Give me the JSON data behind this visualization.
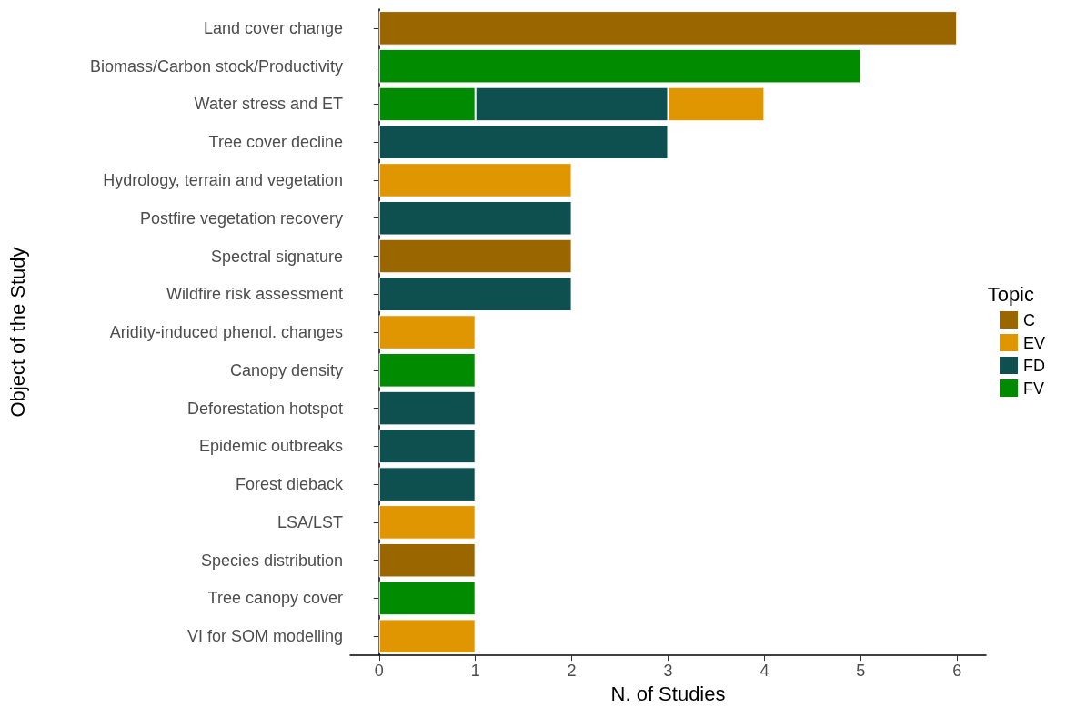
{
  "chart_data": {
    "type": "bar",
    "orientation": "horizontal",
    "stacked": true,
    "xlabel": "N. of Studies",
    "ylabel": "Object of the Study",
    "legend_title": "Topic",
    "categories": [
      "Land cover change",
      "Biomass/Carbon stock/Productivity",
      "Water stress and ET",
      "Tree cover decline",
      "Hydrology, terrain and vegetation",
      "Postfire vegetation recovery",
      "Spectral signature",
      "Wildfire risk assessment",
      "Aridity-induced phenol. changes",
      "Canopy density",
      "Deforestation hotspot",
      "Epidemic outbreaks",
      "Forest dieback",
      "LSA/LST",
      "Species distribution",
      "Tree canopy cover",
      "VI for SOM modelling"
    ],
    "series": [
      {
        "name": "FV",
        "color": "#008b00",
        "values": [
          null,
          5,
          1,
          null,
          null,
          null,
          null,
          null,
          null,
          1,
          null,
          null,
          null,
          null,
          null,
          1,
          null
        ]
      },
      {
        "name": "FD",
        "color": "#0e4f50",
        "values": [
          null,
          null,
          2,
          3,
          null,
          2,
          null,
          2,
          null,
          null,
          1,
          1,
          1,
          null,
          null,
          null,
          null
        ]
      },
      {
        "name": "EV",
        "color": "#e09600",
        "values": [
          null,
          null,
          1,
          null,
          2,
          null,
          null,
          null,
          1,
          null,
          null,
          null,
          null,
          1,
          null,
          null,
          1
        ]
      },
      {
        "name": "C",
        "color": "#996600",
        "values": [
          6,
          null,
          null,
          null,
          null,
          null,
          2,
          null,
          null,
          null,
          null,
          null,
          null,
          null,
          1,
          null,
          null
        ]
      }
    ],
    "xlim": [
      -0.3,
      6.3
    ],
    "xticks": [
      0,
      1,
      2,
      3,
      4,
      5,
      6
    ],
    "grid": false,
    "legend": "right"
  }
}
